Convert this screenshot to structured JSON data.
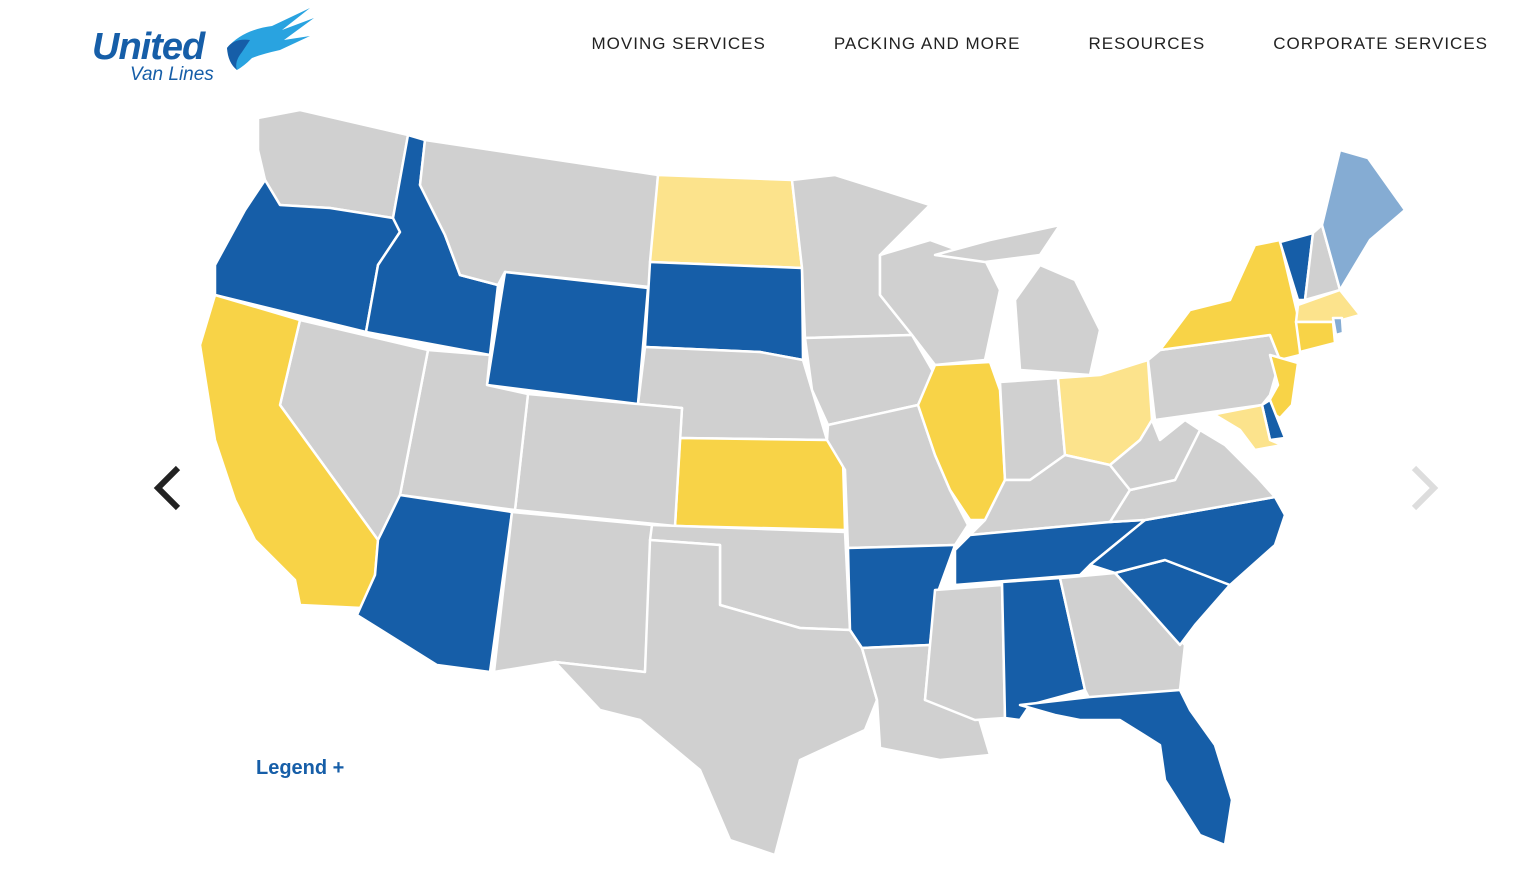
{
  "logo": {
    "line1": "United",
    "line2": "Van Lines"
  },
  "nav": [
    {
      "label": "MOVING SERVICES"
    },
    {
      "label": "PACKING AND MORE"
    },
    {
      "label": "RESOURCES"
    },
    {
      "label": "CORPORATE SERVICES"
    }
  ],
  "legend_label": "Legend +",
  "colors": {
    "dark_blue": "#165ea8",
    "light_blue": "#85acd3",
    "yellow": "#f8d347",
    "light_yellow": "#fce38c",
    "gray": "#d0d0d0",
    "brand": "#165ea8"
  },
  "state_colors": {
    "WA": "gray",
    "OR": "dark_blue",
    "ID": "dark_blue",
    "MT": "gray",
    "ND": "light_yellow",
    "SD": "dark_blue",
    "WY": "dark_blue",
    "NE": "gray",
    "KS": "yellow",
    "CO": "gray",
    "UT": "gray",
    "NV": "gray",
    "CA": "yellow",
    "AZ": "dark_blue",
    "NM": "gray",
    "OK": "gray",
    "TX": "gray",
    "MN": "gray",
    "IA": "gray",
    "MO": "gray",
    "AR": "dark_blue",
    "LA": "gray",
    "WI": "gray",
    "IL": "yellow",
    "MI": "gray",
    "IN": "gray",
    "OH": "light_yellow",
    "KY": "gray",
    "TN": "dark_blue",
    "MS": "gray",
    "AL": "dark_blue",
    "GA": "gray",
    "FL": "dark_blue",
    "SC": "dark_blue",
    "NC": "dark_blue",
    "VA": "gray",
    "WV": "gray",
    "PA": "gray",
    "NY": "yellow",
    "NJ": "yellow",
    "DE": "dark_blue",
    "MD": "light_yellow",
    "VT": "dark_blue",
    "NH": "gray",
    "ME": "light_blue",
    "MA": "light_yellow",
    "CT": "yellow",
    "RI": "light_blue"
  },
  "carousel": {
    "prev_icon": "chevron-left-icon",
    "next_icon": "chevron-right-icon"
  }
}
